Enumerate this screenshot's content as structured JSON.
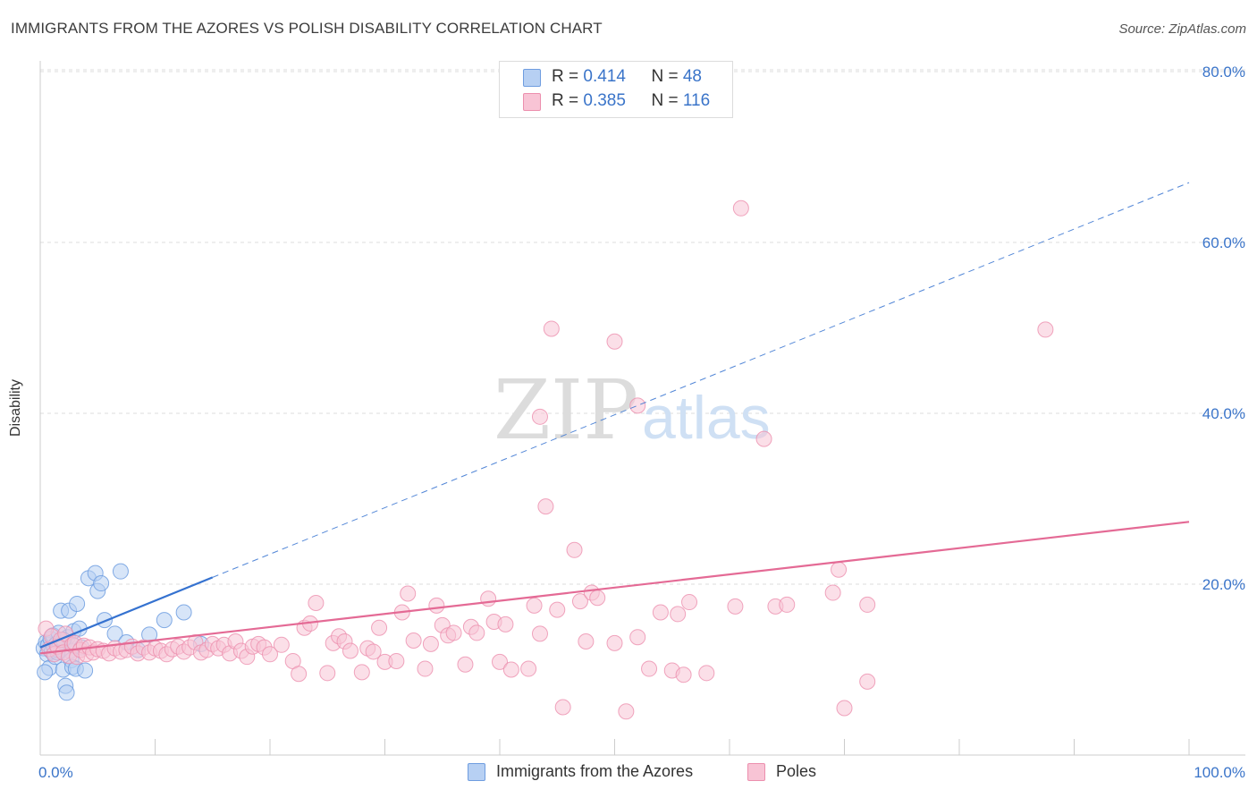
{
  "header": {
    "title": "IMMIGRANTS FROM THE AZORES VS POLISH DISABILITY CORRELATION CHART",
    "source": "Source: ZipAtlas.com"
  },
  "legend": {
    "rows": [
      {
        "r_label": "R = ",
        "r_value": "0.414",
        "n_label": "N = ",
        "n_value": "48"
      },
      {
        "r_label": "R = ",
        "r_value": "0.385",
        "n_label": "N = ",
        "n_value": "116"
      }
    ]
  },
  "watermark": {
    "zip": "ZIP",
    "atlas": "atlas"
  },
  "colors": {
    "azores_fill": "#b7d0f3",
    "azores_stroke": "#6f9de0",
    "azores_line": "#3572d0",
    "poles_fill": "#f8c4d5",
    "poles_stroke": "#ec8fae",
    "poles_line": "#e46a95",
    "tick_label": "#3a74c9",
    "grid": "#dddddd"
  },
  "chart_data": {
    "type": "scatter",
    "title": "IMMIGRANTS FROM THE AZORES VS POLISH DISABILITY CORRELATION CHART",
    "xlabel": "",
    "ylabel": "Disability",
    "xlim": [
      0,
      100
    ],
    "ylim": [
      0,
      80
    ],
    "x_tick_labels": [
      "0.0%",
      "100.0%"
    ],
    "y_ticks": [
      20,
      40,
      60,
      80
    ],
    "y_tick_labels": [
      "20.0%",
      "40.0%",
      "60.0%",
      "80.0%"
    ],
    "grid": true,
    "legend_placement": "top-center",
    "series": [
      {
        "name": "Immigrants from the Azores",
        "r": 0.414,
        "n": 48,
        "trend": {
          "x0": 0,
          "y0": 12.6,
          "x1": 15,
          "y1": 20.8,
          "dashed_to_x": 100,
          "dashed_to_y": 67.0
        },
        "points": [
          [
            0.3,
            12.5
          ],
          [
            0.5,
            13.2
          ],
          [
            0.6,
            11.8
          ],
          [
            0.7,
            12.9
          ],
          [
            0.8,
            10.2
          ],
          [
            0.9,
            13.6
          ],
          [
            1.0,
            12.1
          ],
          [
            1.1,
            14.0
          ],
          [
            1.2,
            12.7
          ],
          [
            1.3,
            11.5
          ],
          [
            1.4,
            13.0
          ],
          [
            1.5,
            12.3
          ],
          [
            1.6,
            14.3
          ],
          [
            1.7,
            12.9
          ],
          [
            1.8,
            16.9
          ],
          [
            1.9,
            12.4
          ],
          [
            2.0,
            10.0
          ],
          [
            2.1,
            13.2
          ],
          [
            2.2,
            8.1
          ],
          [
            2.3,
            7.3
          ],
          [
            2.4,
            13.8
          ],
          [
            2.5,
            16.9
          ],
          [
            2.6,
            12.2
          ],
          [
            2.7,
            11.1
          ],
          [
            2.8,
            10.3
          ],
          [
            2.9,
            14.5
          ],
          [
            3.0,
            12.8
          ],
          [
            3.1,
            10.1
          ],
          [
            3.2,
            17.7
          ],
          [
            3.4,
            14.8
          ],
          [
            3.6,
            12.6
          ],
          [
            3.9,
            9.9
          ],
          [
            4.2,
            20.7
          ],
          [
            4.8,
            21.3
          ],
          [
            5.0,
            19.2
          ],
          [
            5.3,
            20.1
          ],
          [
            5.6,
            15.8
          ],
          [
            6.5,
            14.2
          ],
          [
            7.0,
            21.5
          ],
          [
            7.5,
            13.2
          ],
          [
            8.5,
            12.3
          ],
          [
            9.5,
            14.1
          ],
          [
            10.8,
            15.8
          ],
          [
            12.5,
            16.7
          ],
          [
            0.4,
            9.7
          ],
          [
            1.5,
            12.0
          ],
          [
            2.0,
            13.5
          ],
          [
            14.0,
            13.0
          ]
        ]
      },
      {
        "name": "Poles",
        "r": 0.385,
        "n": 116,
        "trend": {
          "x0": 0,
          "y0": 11.9,
          "x1": 100,
          "y1": 27.3
        },
        "points": [
          [
            0.5,
            14.8
          ],
          [
            0.8,
            12.4
          ],
          [
            1.0,
            13.9
          ],
          [
            1.2,
            11.8
          ],
          [
            1.5,
            12.7
          ],
          [
            1.8,
            13.5
          ],
          [
            2.0,
            12.0
          ],
          [
            2.2,
            14.2
          ],
          [
            2.5,
            11.6
          ],
          [
            2.8,
            12.9
          ],
          [
            3.0,
            13.1
          ],
          [
            3.2,
            11.5
          ],
          [
            3.5,
            12.3
          ],
          [
            3.8,
            12.8
          ],
          [
            4.0,
            11.8
          ],
          [
            4.3,
            12.6
          ],
          [
            4.6,
            12.0
          ],
          [
            5.0,
            12.4
          ],
          [
            5.5,
            12.2
          ],
          [
            6.0,
            11.9
          ],
          [
            6.5,
            12.5
          ],
          [
            7.0,
            12.1
          ],
          [
            7.5,
            12.3
          ],
          [
            8.0,
            12.7
          ],
          [
            8.5,
            11.9
          ],
          [
            9.0,
            12.6
          ],
          [
            9.5,
            12.0
          ],
          [
            10.0,
            12.5
          ],
          [
            10.5,
            12.2
          ],
          [
            11.0,
            11.8
          ],
          [
            11.5,
            12.4
          ],
          [
            12.0,
            12.7
          ],
          [
            12.5,
            12.1
          ],
          [
            13.0,
            12.6
          ],
          [
            13.5,
            13.2
          ],
          [
            14.0,
            12.0
          ],
          [
            14.5,
            12.3
          ],
          [
            15.0,
            13.0
          ],
          [
            15.5,
            12.5
          ],
          [
            16.0,
            12.9
          ],
          [
            16.5,
            11.9
          ],
          [
            17.0,
            13.3
          ],
          [
            17.5,
            12.2
          ],
          [
            18.0,
            11.5
          ],
          [
            18.5,
            12.7
          ],
          [
            19.0,
            13.0
          ],
          [
            19.5,
            12.6
          ],
          [
            20.0,
            11.8
          ],
          [
            21.0,
            12.9
          ],
          [
            22.0,
            11.0
          ],
          [
            22.5,
            9.5
          ],
          [
            23.0,
            14.9
          ],
          [
            23.5,
            15.4
          ],
          [
            24.0,
            17.8
          ],
          [
            25.0,
            9.6
          ],
          [
            25.5,
            13.1
          ],
          [
            26.0,
            13.9
          ],
          [
            26.5,
            13.3
          ],
          [
            27.0,
            12.2
          ],
          [
            28.0,
            9.7
          ],
          [
            28.5,
            12.5
          ],
          [
            29.0,
            12.1
          ],
          [
            29.5,
            14.9
          ],
          [
            30.0,
            10.9
          ],
          [
            31.0,
            11.0
          ],
          [
            31.5,
            16.7
          ],
          [
            32.0,
            18.9
          ],
          [
            32.5,
            13.4
          ],
          [
            33.5,
            10.1
          ],
          [
            34.0,
            13.0
          ],
          [
            34.5,
            17.5
          ],
          [
            35.0,
            15.2
          ],
          [
            35.5,
            14.0
          ],
          [
            36.0,
            14.3
          ],
          [
            37.0,
            10.6
          ],
          [
            37.5,
            15.0
          ],
          [
            38.0,
            14.3
          ],
          [
            39.0,
            18.3
          ],
          [
            39.5,
            15.6
          ],
          [
            40.0,
            10.9
          ],
          [
            40.5,
            15.3
          ],
          [
            41.0,
            10.0
          ],
          [
            42.5,
            10.1
          ],
          [
            43.0,
            17.5
          ],
          [
            43.5,
            14.2
          ],
          [
            44.0,
            29.1
          ],
          [
            45.0,
            17.0
          ],
          [
            45.5,
            5.6
          ],
          [
            46.5,
            24.0
          ],
          [
            47.0,
            18.0
          ],
          [
            47.5,
            13.3
          ],
          [
            48.0,
            19.0
          ],
          [
            48.5,
            18.4
          ],
          [
            50.0,
            13.1
          ],
          [
            51.0,
            5.1
          ],
          [
            52.0,
            13.8
          ],
          [
            53.0,
            10.1
          ],
          [
            54.0,
            16.7
          ],
          [
            55.0,
            9.9
          ],
          [
            55.5,
            16.5
          ],
          [
            56.0,
            9.4
          ],
          [
            56.5,
            17.9
          ],
          [
            58.0,
            9.6
          ],
          [
            60.5,
            17.4
          ],
          [
            61.0,
            64.0
          ],
          [
            63.0,
            37.0
          ],
          [
            64.0,
            17.4
          ],
          [
            65.0,
            17.6
          ],
          [
            69.0,
            19.0
          ],
          [
            69.5,
            21.7
          ],
          [
            70.0,
            5.5
          ],
          [
            72.0,
            17.6
          ],
          [
            72.0,
            8.6
          ],
          [
            87.5,
            49.8
          ],
          [
            44.5,
            49.9
          ],
          [
            43.5,
            39.6
          ],
          [
            50.0,
            48.4
          ],
          [
            52.0,
            40.9
          ]
        ]
      }
    ]
  },
  "bottom_legend": {
    "items": [
      {
        "label": "Immigrants from the Azores"
      },
      {
        "label": "Poles"
      }
    ]
  }
}
